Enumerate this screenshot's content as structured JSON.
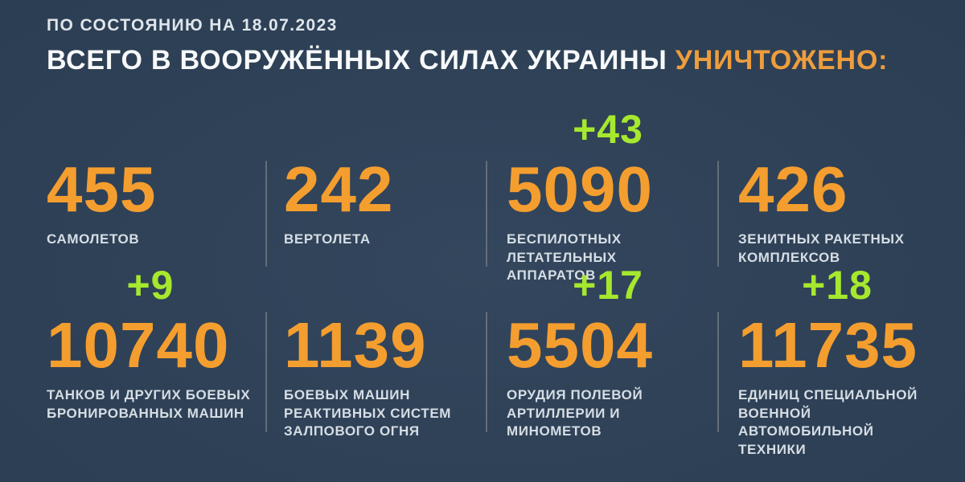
{
  "header": {
    "date_line": "ПО СОСТОЯНИЮ НА 18.07.2023",
    "title_main": "ВСЕГО В ВООРУЖЁННЫХ СИЛАХ УКРАИНЫ ",
    "title_accent": "УНИЧТОЖЕНО:"
  },
  "colors": {
    "background": "#2F4157",
    "number_orange": "#F49E2F",
    "title_accent_orange": "#EE9D3D",
    "delta_green": "#A6E82E",
    "label_white": "#D6DDE4",
    "divider_gray": "#6C777D"
  },
  "stats": [
    {
      "value": "455",
      "delta": "",
      "label_lines": [
        "САМОЛЕТОВ"
      ]
    },
    {
      "value": "242",
      "delta": "",
      "label_lines": [
        "ВЕРТОЛЕТА"
      ]
    },
    {
      "value": "5090",
      "delta": "+43",
      "label_lines": [
        "БЕСПИЛОТНЫХ",
        "ЛЕТАТЕЛЬНЫХ АППАРАТОВ"
      ]
    },
    {
      "value": "426",
      "delta": "",
      "label_lines": [
        "ЗЕНИТНЫХ РАКЕТНЫХ",
        "КОМПЛЕКСОВ"
      ]
    },
    {
      "value": "10740",
      "delta": "+9",
      "label_lines": [
        "ТАНКОВ И ДРУГИХ БОЕВЫХ",
        "БРОНИРОВАННЫХ МАШИН"
      ]
    },
    {
      "value": "1139",
      "delta": "",
      "label_lines": [
        "БОЕВЫХ МАШИН",
        "РЕАКТИВНЫХ СИСТЕМ",
        "ЗАЛПОВОГО ОГНЯ"
      ]
    },
    {
      "value": "5504",
      "delta": "+17",
      "label_lines": [
        "ОРУДИЯ ПОЛЕВОЙ",
        "АРТИЛЛЕРИИ И МИНОМЕТОВ"
      ]
    },
    {
      "value": "11735",
      "delta": "+18",
      "label_lines": [
        "ЕДИНИЦ СПЕЦИАЛЬНОЙ",
        "ВОЕННОЙ АВТОМОБИЛЬНОЙ",
        "ТЕХНИКИ"
      ]
    }
  ],
  "chart_data": {
    "type": "table",
    "title": "ВСЕГО В ВООРУЖЁННЫХ СИЛАХ УКРАИНЫ УНИЧТОЖЕНО:",
    "subtitle": "ПО СОСТОЯНИЮ НА 18.07.2023",
    "categories": [
      "самолетов",
      "вертолета",
      "беспилотных летательных аппаратов",
      "зенитных ракетных комплексов",
      "танков и других боевых бронированных машин",
      "боевых машин реактивных систем залпового огня",
      "орудия полевой артиллерии и минометов",
      "единиц специальной военной автомобильной техники"
    ],
    "values": [
      455,
      242,
      5090,
      426,
      10740,
      1139,
      5504,
      11735
    ],
    "daily_increase": [
      null,
      null,
      43,
      null,
      9,
      null,
      17,
      18
    ],
    "layout": "grid-4x2, increments shown in green above counters"
  }
}
